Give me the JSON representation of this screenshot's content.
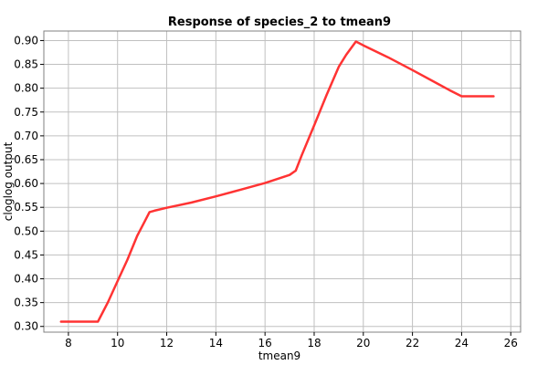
{
  "chart_data": {
    "type": "line",
    "title": "Response of species_2 to tmean9",
    "xlabel": "tmean9",
    "ylabel": "cloglog output",
    "xlim": [
      7.0,
      26.4
    ],
    "ylim": [
      0.288,
      0.92
    ],
    "xticks": [
      8,
      10,
      12,
      14,
      16,
      18,
      20,
      22,
      24,
      26
    ],
    "yticks": [
      0.3,
      0.35,
      0.4,
      0.45,
      0.5,
      0.55,
      0.6,
      0.65,
      0.7,
      0.75,
      0.8,
      0.85,
      0.9
    ],
    "grid": true,
    "series": [
      {
        "color": "#ff3333",
        "x": [
          7.7,
          9.2,
          9.6,
          10.0,
          10.4,
          10.8,
          11.1,
          11.3,
          11.5,
          12.0,
          13.0,
          14.0,
          15.0,
          16.0,
          17.0,
          17.25,
          17.5,
          18.0,
          18.5,
          19.0,
          19.3,
          19.7,
          20.0,
          21.0,
          22.0,
          23.0,
          23.5,
          24.0,
          24.5,
          25.3
        ],
        "y": [
          0.31,
          0.31,
          0.35,
          0.395,
          0.44,
          0.49,
          0.52,
          0.54,
          0.543,
          0.549,
          0.56,
          0.573,
          0.587,
          0.601,
          0.618,
          0.627,
          0.66,
          0.722,
          0.785,
          0.845,
          0.87,
          0.898,
          0.89,
          0.865,
          0.838,
          0.81,
          0.796,
          0.783,
          0.783,
          0.783
        ]
      }
    ]
  }
}
